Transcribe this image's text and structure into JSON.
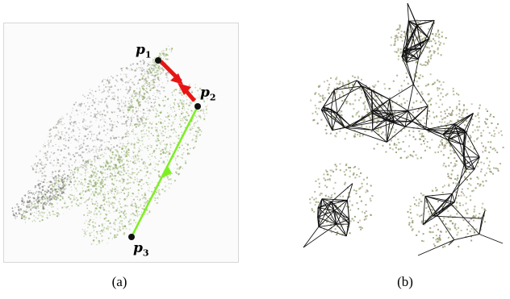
{
  "figure": {
    "panel_a": {
      "points": [
        {
          "name": "p",
          "sub": "1"
        },
        {
          "name": "p",
          "sub": "2"
        },
        {
          "name": "p",
          "sub": "3"
        }
      ],
      "caption": "(a)"
    },
    "panel_b": {
      "caption": "(b)"
    },
    "colors": {
      "cloud_green": "#8aa860",
      "cloud_grey": "#9a9a92",
      "red_arrow": "#e81414",
      "green_line": "#7cf020",
      "wire": "#111111",
      "dot_olive": "#8c9966"
    }
  }
}
